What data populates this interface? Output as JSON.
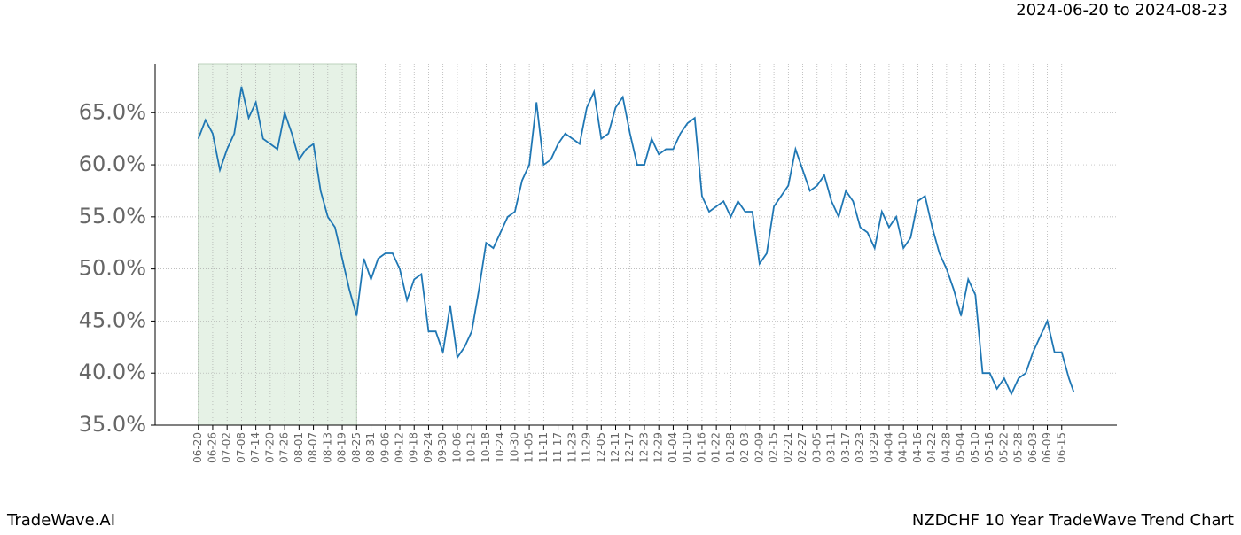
{
  "header": {
    "range": "2024-06-20 to 2024-08-23"
  },
  "footer": {
    "brand": "TradeWave.AI",
    "caption": "NZDCHF 10 Year TradeWave Trend Chart"
  },
  "chart_data": {
    "type": "line",
    "x": [
      0,
      3,
      6,
      9,
      12,
      15,
      18,
      21,
      24,
      27,
      30,
      33,
      36,
      39,
      42,
      45,
      48,
      51,
      54,
      57,
      60,
      63,
      66,
      69,
      72,
      75,
      78,
      81,
      84,
      87,
      90,
      93,
      96,
      99,
      102,
      105,
      108,
      111,
      114,
      117,
      120,
      123,
      126,
      129,
      132,
      135,
      138,
      141,
      144,
      147,
      150,
      153,
      156,
      159,
      162,
      165,
      168,
      171,
      174,
      177,
      180,
      183,
      186,
      189,
      192,
      195,
      198,
      201,
      204,
      207,
      210,
      213,
      216,
      219,
      222,
      225,
      228,
      231,
      234,
      237,
      240,
      243,
      246,
      249,
      252,
      255,
      258,
      261,
      264,
      267,
      270,
      273,
      276,
      279,
      282,
      285,
      288,
      291,
      294,
      297,
      300,
      303,
      306,
      309,
      312,
      315,
      318,
      321,
      324,
      327,
      330,
      333,
      336,
      339,
      342,
      345,
      348,
      351,
      354,
      357,
      360,
      363,
      365
    ],
    "series": [
      {
        "color": "#1f77b4",
        "values": [
          62.5,
          64.3,
          63,
          59.5,
          61.5,
          63,
          67.5,
          64.5,
          66,
          62.5,
          62,
          61.5,
          65,
          63,
          60.5,
          61.5,
          62,
          57.5,
          55,
          54,
          51,
          48,
          45.5,
          51,
          49,
          51,
          51.5,
          51.5,
          50,
          47,
          49,
          49.5,
          44,
          44,
          42,
          46.5,
          41.5,
          42.5,
          44,
          48,
          52.5,
          52,
          53.5,
          55,
          55.5,
          58.5,
          60,
          66,
          60,
          60.5,
          62,
          63,
          62.5,
          62,
          65.5,
          67,
          62.5,
          63,
          65.5,
          66.5,
          63,
          60,
          60,
          62.5,
          61,
          61.5,
          61.5,
          63,
          64,
          64.5,
          57,
          55.5,
          56,
          56.5,
          55,
          56.5,
          55.5,
          55.5,
          50.5,
          51.5,
          56,
          57,
          58,
          61.5,
          59.5,
          57.5,
          58,
          59,
          56.5,
          55,
          57.5,
          56.5,
          54,
          53.5,
          52,
          55.5,
          54,
          55,
          52,
          53,
          56.5,
          57,
          54,
          51.5,
          50,
          48,
          45.5,
          49,
          47.5,
          40,
          40,
          38.5,
          39.5,
          38,
          39.5,
          40,
          42,
          43.5,
          45,
          42,
          42,
          39.5,
          38.2
        ]
      }
    ],
    "xlim": [
      -18,
      383
    ],
    "xticks": [
      {
        "value": 0,
        "label": "06-20"
      },
      {
        "value": 6,
        "label": "06-26"
      },
      {
        "value": 12,
        "label": "07-02"
      },
      {
        "value": 18,
        "label": "07-08"
      },
      {
        "value": 24,
        "label": "07-14"
      },
      {
        "value": 30,
        "label": "07-20"
      },
      {
        "value": 36,
        "label": "07-26"
      },
      {
        "value": 42,
        "label": "08-01"
      },
      {
        "value": 48,
        "label": "08-07"
      },
      {
        "value": 54,
        "label": "08-13"
      },
      {
        "value": 60,
        "label": "08-19"
      },
      {
        "value": 66,
        "label": "08-25"
      },
      {
        "value": 72,
        "label": "08-31"
      },
      {
        "value": 78,
        "label": "09-06"
      },
      {
        "value": 84,
        "label": "09-12"
      },
      {
        "value": 90,
        "label": "09-18"
      },
      {
        "value": 96,
        "label": "09-24"
      },
      {
        "value": 102,
        "label": "09-30"
      },
      {
        "value": 108,
        "label": "10-06"
      },
      {
        "value": 114,
        "label": "10-12"
      },
      {
        "value": 120,
        "label": "10-18"
      },
      {
        "value": 126,
        "label": "10-24"
      },
      {
        "value": 132,
        "label": "10-30"
      },
      {
        "value": 138,
        "label": "11-05"
      },
      {
        "value": 144,
        "label": "11-11"
      },
      {
        "value": 150,
        "label": "11-17"
      },
      {
        "value": 156,
        "label": "11-23"
      },
      {
        "value": 162,
        "label": "11-29"
      },
      {
        "value": 168,
        "label": "12-05"
      },
      {
        "value": 174,
        "label": "12-11"
      },
      {
        "value": 180,
        "label": "12-17"
      },
      {
        "value": 186,
        "label": "12-23"
      },
      {
        "value": 192,
        "label": "12-29"
      },
      {
        "value": 198,
        "label": "01-04"
      },
      {
        "value": 204,
        "label": "01-10"
      },
      {
        "value": 210,
        "label": "01-16"
      },
      {
        "value": 216,
        "label": "01-22"
      },
      {
        "value": 222,
        "label": "01-28"
      },
      {
        "value": 228,
        "label": "02-03"
      },
      {
        "value": 234,
        "label": "02-09"
      },
      {
        "value": 240,
        "label": "02-15"
      },
      {
        "value": 246,
        "label": "02-21"
      },
      {
        "value": 252,
        "label": "02-27"
      },
      {
        "value": 258,
        "label": "03-05"
      },
      {
        "value": 264,
        "label": "03-11"
      },
      {
        "value": 270,
        "label": "03-17"
      },
      {
        "value": 276,
        "label": "03-23"
      },
      {
        "value": 282,
        "label": "03-29"
      },
      {
        "value": 288,
        "label": "04-04"
      },
      {
        "value": 294,
        "label": "04-10"
      },
      {
        "value": 300,
        "label": "04-16"
      },
      {
        "value": 306,
        "label": "04-22"
      },
      {
        "value": 312,
        "label": "04-28"
      },
      {
        "value": 318,
        "label": "05-04"
      },
      {
        "value": 324,
        "label": "05-10"
      },
      {
        "value": 330,
        "label": "05-16"
      },
      {
        "value": 336,
        "label": "05-22"
      },
      {
        "value": 342,
        "label": "05-28"
      },
      {
        "value": 348,
        "label": "06-03"
      },
      {
        "value": 354,
        "label": "06-09"
      },
      {
        "value": 360,
        "label": "06-15"
      }
    ],
    "ylim": [
      35,
      69.7
    ],
    "yticks": [
      {
        "value": 35,
        "label": "35.0%"
      },
      {
        "value": 40,
        "label": "40.0%"
      },
      {
        "value": 45,
        "label": "45.0%"
      },
      {
        "value": 50,
        "label": "50.0%"
      },
      {
        "value": 55,
        "label": "55.0%"
      },
      {
        "value": 60,
        "label": "60.0%"
      },
      {
        "value": 65,
        "label": "65.0%"
      }
    ],
    "highlight_range": [
      0,
      66
    ],
    "highlight_color": "#e6f2e6",
    "grid": true
  }
}
